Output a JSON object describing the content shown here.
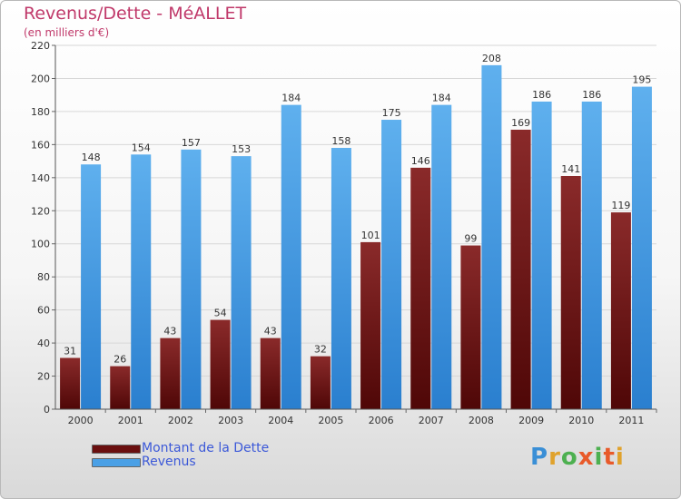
{
  "title": "Revenus/Dette - MéALLET",
  "subtitle": "(en milliers d'€)",
  "brand": {
    "text": "Proxiti"
  },
  "colors": {
    "title": "#c0396a",
    "dette": "#7a1a1a",
    "revenus": "#4aa0e6",
    "legend_text": "#3c59d8"
  },
  "chart_data": {
    "type": "bar",
    "categories": [
      "2000",
      "2001",
      "2002",
      "2003",
      "2004",
      "2005",
      "2006",
      "2007",
      "2008",
      "2009",
      "2010",
      "2011"
    ],
    "series": [
      {
        "name": "Montant de la Dette",
        "color": "#7a1a1a",
        "values": [
          31,
          26,
          43,
          54,
          43,
          32,
          101,
          146,
          99,
          169,
          141,
          119
        ]
      },
      {
        "name": "Revenus",
        "color": "#4aa0e6",
        "values": [
          148,
          154,
          157,
          153,
          184,
          158,
          175,
          184,
          208,
          186,
          186,
          195
        ]
      }
    ],
    "ylim": [
      0,
      220
    ],
    "yticks": [
      0,
      20,
      40,
      60,
      80,
      100,
      120,
      140,
      160,
      180,
      200,
      220
    ],
    "grid": true,
    "legend_position": "bottom-left"
  }
}
